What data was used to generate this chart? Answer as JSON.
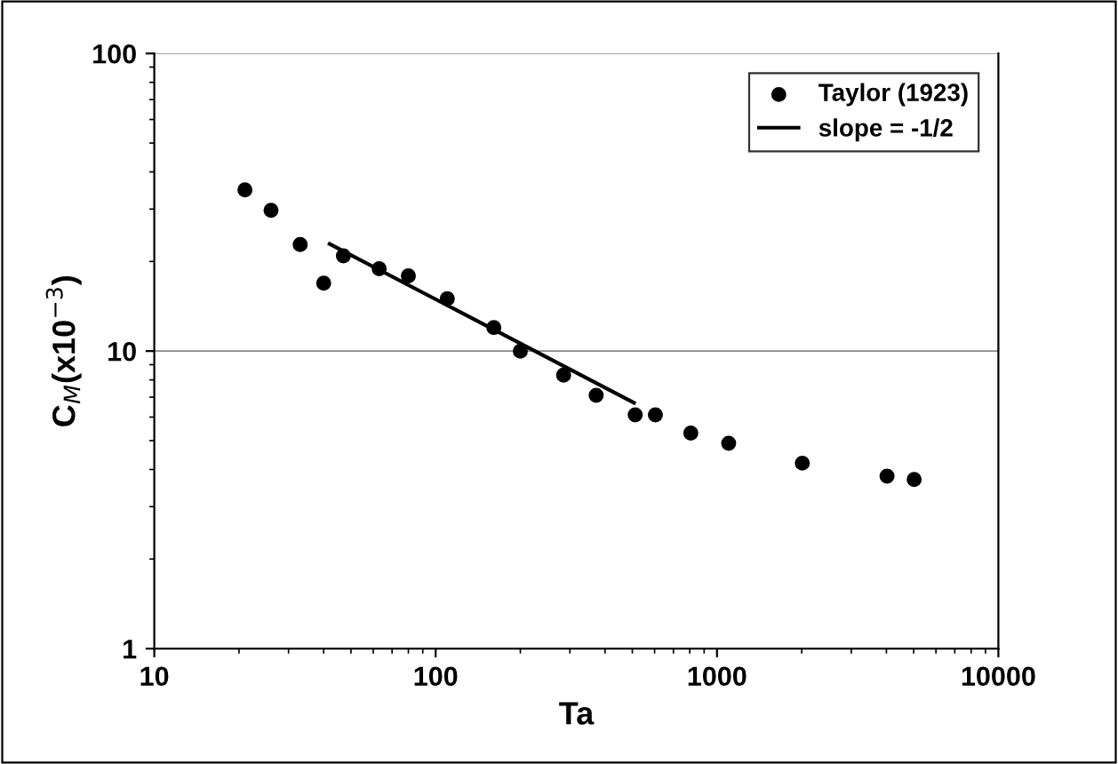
{
  "chart_data": {
    "type": "scatter",
    "xlabel": "Ta",
    "ylabel": "C$_{M}$(x10$^{−3}$)",
    "log": "xy",
    "grid": "y",
    "legend": "top right",
    "marker": "circle",
    "xlim": [
      10,
      10000
    ],
    "xticks": [
      10,
      100,
      1000,
      10000
    ],
    "ylim": [
      1,
      100
    ],
    "yticks": [
      1,
      10,
      100
    ],
    "series": [
      {
        "name": "Taylor (1923)",
        "color": "#000000",
        "x": [
          21,
          26,
          33,
          40,
          47,
          63,
          80,
          110,
          161,
          200,
          285,
          372,
          512,
          604,
          807,
          1100,
          2010,
          4020,
          5020
        ],
        "values": [
          34.8,
          29.7,
          22.8,
          16.9,
          20.9,
          18.9,
          17.9,
          15.0,
          12.0,
          10.0,
          8.3,
          7.1,
          6.1,
          6.1,
          5.3,
          4.9,
          4.2,
          3.8,
          3.7
        ]
      },
      {
        "name": "slope = -1/2",
        "type": "line",
        "color": "#000000",
        "marker": "none",
        "line_style": "solid",
        "x": [
          42,
          507
        ],
        "values": [
          22.9,
          6.7
        ]
      }
    ]
  }
}
